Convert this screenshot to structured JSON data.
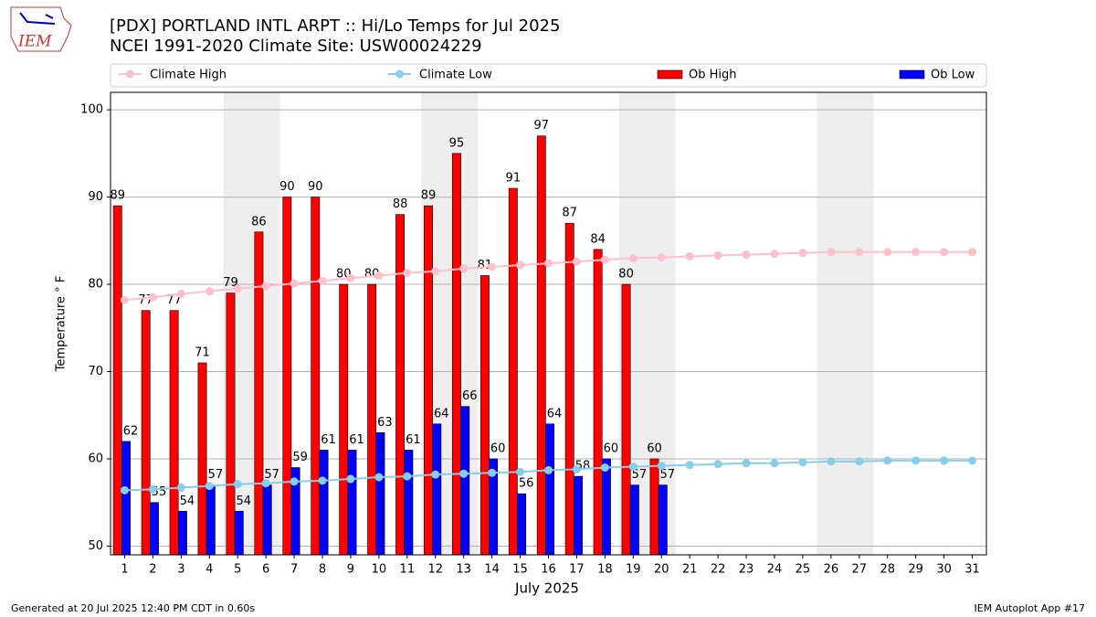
{
  "chart_data": {
    "type": "bar",
    "title": "[PDX] PORTLAND INTL ARPT :: Hi/Lo Temps for Jul 2025",
    "subtitle": "NCEI 1991-2020 Climate Site: USW00024229",
    "y_label": "Temperature $^\\circ$F",
    "y_label_text": "Temperature ° F",
    "x_label": "July 2025",
    "footer_left": "Generated at 20 Jul 2025 12:40 PM CDT in 0.60s",
    "footer_right": "IEM Autoplot App #17",
    "logo_text": "IEM",
    "x": [
      1,
      2,
      3,
      4,
      5,
      6,
      7,
      8,
      9,
      10,
      11,
      12,
      13,
      14,
      15,
      16,
      17,
      18,
      19,
      20,
      21,
      22,
      23,
      24,
      25,
      26,
      27,
      28,
      29,
      30,
      31
    ],
    "xlim": [
      0.5,
      31.5
    ],
    "xticks": [
      1,
      2,
      3,
      4,
      5,
      6,
      7,
      8,
      9,
      10,
      11,
      12,
      13,
      14,
      15,
      16,
      17,
      18,
      19,
      20,
      21,
      22,
      23,
      24,
      25,
      26,
      27,
      28,
      29,
      30,
      31
    ],
    "ylim": [
      49,
      102
    ],
    "yticks": [
      50,
      60,
      70,
      80,
      90,
      100
    ],
    "grid": true,
    "highlight_ranges": [
      [
        4.5,
        6.5
      ],
      [
        11.5,
        13.5
      ],
      [
        18.5,
        20.5
      ],
      [
        25.5,
        27.5
      ]
    ],
    "highlight_color": "#eeeeee",
    "series": [
      {
        "name": "Climate High",
        "type": "line",
        "color": "#ffc0cb",
        "values": [
          78.2,
          78.5,
          78.9,
          79.2,
          79.5,
          79.8,
          80.1,
          80.4,
          80.7,
          81.0,
          81.3,
          81.5,
          81.8,
          82.0,
          82.2,
          82.4,
          82.6,
          82.8,
          83.0,
          83.1,
          83.2,
          83.3,
          83.4,
          83.5,
          83.6,
          83.7,
          83.7,
          83.7,
          83.7,
          83.7,
          83.7
        ]
      },
      {
        "name": "Climate Low",
        "type": "line",
        "color": "#87ceeb",
        "values": [
          56.4,
          56.5,
          56.7,
          56.9,
          57.1,
          57.2,
          57.4,
          57.5,
          57.7,
          57.9,
          58.0,
          58.2,
          58.3,
          58.4,
          58.5,
          58.7,
          58.8,
          59.0,
          59.1,
          59.2,
          59.3,
          59.4,
          59.5,
          59.5,
          59.6,
          59.7,
          59.7,
          59.8,
          59.8,
          59.8,
          59.8
        ]
      },
      {
        "name": "Ob High",
        "type": "bar",
        "color": "#ff0000",
        "values": [
          89,
          77,
          77,
          71,
          79,
          86,
          90,
          90,
          80,
          80,
          88,
          89,
          95,
          81,
          91,
          97,
          87,
          84,
          80,
          60,
          null,
          null,
          null,
          null,
          null,
          null,
          null,
          null,
          null,
          null,
          null
        ]
      },
      {
        "name": "Ob Low",
        "type": "bar",
        "color": "#0000ff",
        "values": [
          62,
          55,
          54,
          57,
          54,
          57,
          59,
          61,
          61,
          63,
          61,
          64,
          66,
          60,
          56,
          64,
          58,
          60,
          57,
          57,
          null,
          null,
          null,
          null,
          null,
          null,
          null,
          null,
          null,
          null,
          null
        ]
      }
    ]
  }
}
